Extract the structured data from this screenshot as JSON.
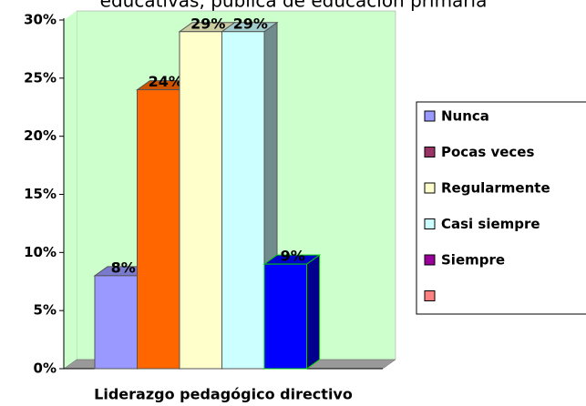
{
  "chart_data": {
    "type": "bar3d",
    "title": "educativas, pública de educación primaria",
    "x_label": "Liderazgo pedagógico directivo",
    "categories": [
      "Nunca",
      "Pocas veces",
      "Regularmente",
      "Casi siempre",
      "Siempre"
    ],
    "values": [
      8,
      24,
      29,
      29,
      9
    ],
    "value_labels": [
      "8%",
      "24%",
      "29%",
      "29%",
      "9%"
    ],
    "bar_colors": [
      "#9999ff",
      "#ff6600",
      "#ffffcc",
      "#ccffff",
      "#0000ff"
    ],
    "legend_colors": [
      "#9999ff",
      "#993366",
      "#ffffcc",
      "#ccffff",
      "#990099",
      "#ff8080"
    ],
    "ylim": [
      0,
      30
    ],
    "yticks": [
      {
        "value": 0,
        "label": "0%"
      },
      {
        "value": 5,
        "label": "5%"
      },
      {
        "value": 10,
        "label": "10%"
      },
      {
        "value": 15,
        "label": "15%"
      },
      {
        "value": 20,
        "label": "20%"
      },
      {
        "value": 25,
        "label": "25%"
      },
      {
        "value": 30,
        "label": "30%"
      }
    ],
    "legend_position": "right"
  }
}
